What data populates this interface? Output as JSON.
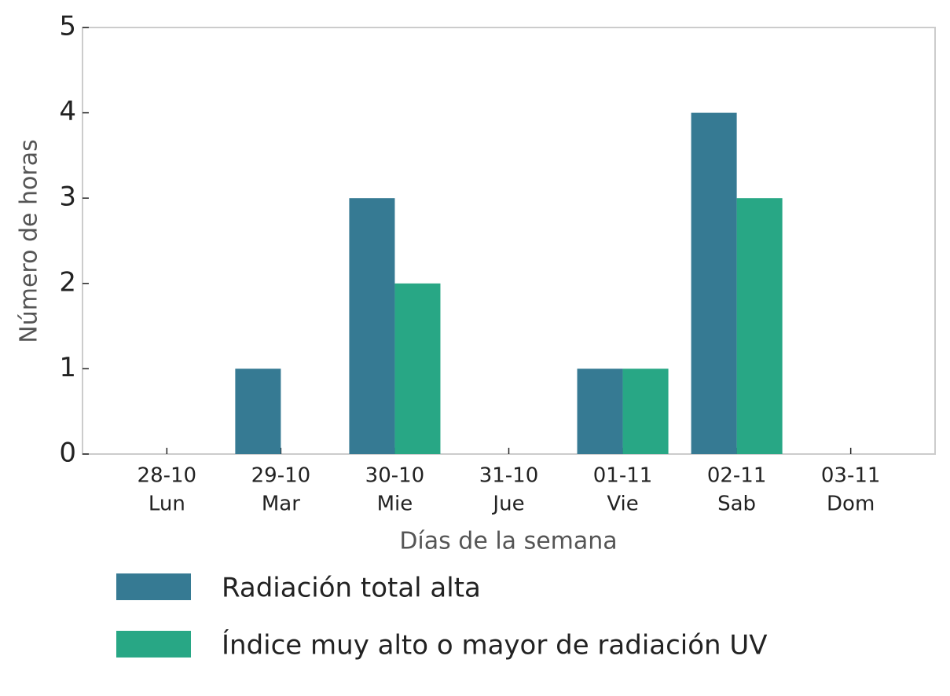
{
  "chart_data": {
    "type": "bar",
    "categories": [
      [
        "28-10",
        "Lun"
      ],
      [
        "29-10",
        "Mar"
      ],
      [
        "30-10",
        "Mie"
      ],
      [
        "31-10",
        "Jue"
      ],
      [
        "01-11",
        "Vie"
      ],
      [
        "02-11",
        "Sab"
      ],
      [
        "03-11",
        "Dom"
      ]
    ],
    "series": [
      {
        "name": "Radiación total alta",
        "color": "#367a93",
        "values": [
          0,
          1,
          3,
          0,
          1,
          4,
          0
        ]
      },
      {
        "name": "Índice muy alto o mayor de radiación UV",
        "color": "#28a785",
        "values": [
          0,
          0,
          2,
          0,
          1,
          3,
          0
        ]
      }
    ],
    "x_label": "Días de la semana",
    "y_label": "Número de horas",
    "ylim": [
      0,
      5
    ],
    "yticks": [
      0,
      1,
      2,
      3,
      4,
      5
    ],
    "grid": false,
    "legend": "bottom"
  }
}
